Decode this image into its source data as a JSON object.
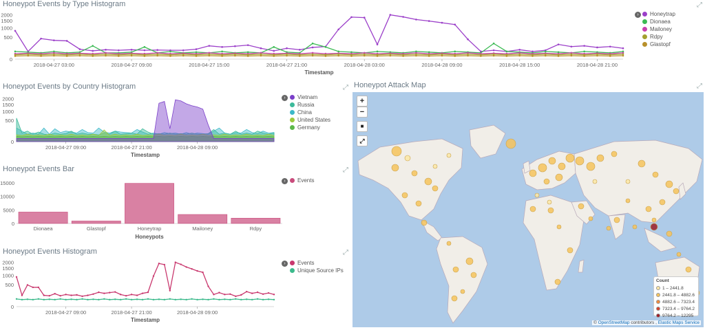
{
  "panels": {
    "type_hist": {
      "title": "Honeypot Events by Type Histogram",
      "xlabel": "Timestamp",
      "yticks": [
        "2000",
        "1500",
        "1000",
        "500",
        "0"
      ],
      "xticks": [
        "2018-04-27 03:00",
        "2018-04-27 09:00",
        "2018-04-27 15:00",
        "2018-04-27 21:00",
        "2018-04-28 03:00",
        "2018-04-28 09:00",
        "2018-04-28 15:00",
        "2018-04-28 21:00"
      ],
      "legend": [
        {
          "name": "Honeytrap",
          "color": "#9b3fc9"
        },
        {
          "name": "Dionaea",
          "color": "#3cba54"
        },
        {
          "name": "Mailoney",
          "color": "#c93fb0"
        },
        {
          "name": "Rdpy",
          "color": "#a3a02f"
        },
        {
          "name": "Glastopf",
          "color": "#b8902b"
        }
      ]
    },
    "country_hist": {
      "title": "Honeypot Events by Country Histogram",
      "xlabel": "Timestamp",
      "yticks": [
        "2000",
        "1500",
        "1000",
        "500",
        "0"
      ],
      "xticks": [
        "2018-04-27 09:00",
        "2018-04-27 21:00",
        "2018-04-28 09:00"
      ],
      "legend": [
        {
          "name": "Vietnam",
          "color": "#7a3fc9"
        },
        {
          "name": "Russia",
          "color": "#3cba9a"
        },
        {
          "name": "China",
          "color": "#3cb8c9"
        },
        {
          "name": "United States",
          "color": "#9bc93c"
        },
        {
          "name": "Germany",
          "color": "#5cb84a"
        }
      ]
    },
    "bar": {
      "title": "Honeypot Events Bar",
      "xlabel": "Honeypots",
      "yticks": [
        "15000",
        "10000",
        "5000",
        "0"
      ],
      "legend": [
        {
          "name": "Events",
          "color": "#c94c7c"
        }
      ]
    },
    "events_hist": {
      "title": "Honeypot Events Histogram",
      "xlabel": "Timestamp",
      "yticks": [
        "2000",
        "1500",
        "1000",
        "500",
        "0"
      ],
      "xticks": [
        "2018-04-27 09:00",
        "2018-04-27 21:00",
        "2018-04-28 09:00"
      ],
      "legend": [
        {
          "name": "Events",
          "color": "#c9386e"
        },
        {
          "name": "Unique Source IPs",
          "color": "#3cba8c"
        }
      ]
    },
    "map": {
      "title": "Honeypot Attack Map",
      "legend_title": "Count",
      "legend": [
        {
          "label": "1 – 2441.8",
          "color": "#fce7a6"
        },
        {
          "label": "2441.8 – 4882.6",
          "color": "#f6c35c"
        },
        {
          "label": "4882.6 – 7323.4",
          "color": "#f08a3c"
        },
        {
          "label": "7323.4 – 9764.2",
          "color": "#d6402b"
        },
        {
          "label": "9764.2 – 12295",
          "color": "#9b1c28"
        }
      ],
      "attribution_prefix": "©",
      "attribution_osm": "OpenStreetMap",
      "attribution_mid": "contributors ,",
      "attribution_ems": "Elastic Maps Service",
      "controls": {
        "zoom_in": "+",
        "zoom_out": "−",
        "draw": "■",
        "fit": "⤢"
      }
    }
  },
  "chart_data": [
    {
      "type": "line",
      "title": "Honeypot Events by Type Histogram",
      "xlabel": "Timestamp",
      "ylabel": "",
      "ylim": [
        0,
        2100
      ],
      "ysqrt": true,
      "x": [
        "2018-04-27 00:00",
        "2018-04-27 01:00",
        "2018-04-27 02:00",
        "2018-04-27 03:00",
        "2018-04-27 04:00",
        "2018-04-27 05:00",
        "2018-04-27 06:00",
        "2018-04-27 07:00",
        "2018-04-27 08:00",
        "2018-04-27 09:00",
        "2018-04-27 10:00",
        "2018-04-27 11:00",
        "2018-04-27 12:00",
        "2018-04-27 13:00",
        "2018-04-27 14:00",
        "2018-04-27 15:00",
        "2018-04-27 16:00",
        "2018-04-27 17:00",
        "2018-04-27 18:00",
        "2018-04-27 19:00",
        "2018-04-27 20:00",
        "2018-04-27 21:00",
        "2018-04-27 22:00",
        "2018-04-27 23:00",
        "2018-04-28 00:00",
        "2018-04-28 01:00",
        "2018-04-28 02:00",
        "2018-04-28 03:00",
        "2018-04-28 04:00",
        "2018-04-28 05:00",
        "2018-04-28 06:00",
        "2018-04-28 07:00",
        "2018-04-28 08:00",
        "2018-04-28 09:00",
        "2018-04-28 10:00",
        "2018-04-28 11:00",
        "2018-04-28 12:00",
        "2018-04-28 13:00",
        "2018-04-28 14:00",
        "2018-04-28 15:00",
        "2018-04-28 16:00",
        "2018-04-28 17:00",
        "2018-04-28 18:00",
        "2018-04-28 19:00",
        "2018-04-28 20:00",
        "2018-04-28 21:00",
        "2018-04-28 22:00",
        "2018-04-28 23:00"
      ],
      "series": [
        {
          "name": "Honeytrap",
          "values": [
            820,
            60,
            430,
            360,
            340,
            100,
            70,
            90,
            80,
            90,
            80,
            85,
            80,
            80,
            100,
            180,
            150,
            170,
            200,
            120,
            70,
            120,
            90,
            140,
            160,
            900,
            1800,
            1760,
            220,
            2000,
            1820,
            1600,
            1480,
            1350,
            1220,
            400,
            60,
            80,
            60,
            90,
            60,
            80,
            220,
            160,
            180,
            140,
            160,
            120
          ]
        },
        {
          "name": "Dionaea",
          "values": [
            60,
            50,
            40,
            60,
            40,
            50,
            180,
            40,
            40,
            50,
            150,
            40,
            60,
            40,
            50,
            40,
            60,
            40,
            50,
            40,
            150,
            50,
            40,
            250,
            150,
            60,
            50,
            40,
            60,
            50,
            40,
            60,
            50,
            40,
            60,
            50,
            40,
            250,
            60,
            50,
            40,
            60,
            50,
            40,
            60,
            50,
            40,
            60
          ]
        },
        {
          "name": "Mailoney",
          "values": [
            30,
            35,
            30,
            40,
            30,
            35,
            30,
            40,
            30,
            35,
            30,
            40,
            30,
            35,
            30,
            40,
            30,
            35,
            30,
            40,
            30,
            35,
            30,
            40,
            30,
            35,
            30,
            40,
            30,
            35,
            30,
            40,
            30,
            35,
            30,
            40,
            30,
            35,
            30,
            40,
            30,
            35,
            30,
            40,
            30,
            35,
            30,
            40
          ]
        },
        {
          "name": "Rdpy",
          "values": [
            20,
            25,
            20,
            25,
            20,
            25,
            20,
            25,
            20,
            25,
            20,
            25,
            20,
            25,
            20,
            25,
            20,
            25,
            20,
            25,
            20,
            25,
            20,
            25,
            20,
            25,
            20,
            25,
            20,
            25,
            20,
            25,
            20,
            25,
            20,
            25,
            20,
            25,
            20,
            25,
            20,
            25,
            20,
            25,
            20,
            25,
            20,
            25
          ]
        },
        {
          "name": "Glastopf",
          "values": [
            10,
            12,
            10,
            12,
            10,
            12,
            10,
            12,
            10,
            12,
            10,
            12,
            10,
            12,
            10,
            12,
            10,
            12,
            10,
            12,
            10,
            12,
            10,
            12,
            10,
            12,
            10,
            12,
            10,
            12,
            10,
            12,
            10,
            12,
            10,
            12,
            10,
            12,
            10,
            12,
            10,
            12,
            10,
            12,
            10,
            12,
            10,
            12
          ]
        }
      ]
    },
    {
      "type": "area",
      "title": "Honeypot Events by Country Histogram",
      "xlabel": "Timestamp",
      "ylabel": "",
      "ylim": [
        0,
        2100
      ],
      "ysqrt": true,
      "x_points": 48,
      "series": [
        {
          "name": "Vietnam",
          "values": [
            10,
            10,
            10,
            10,
            10,
            10,
            10,
            10,
            10,
            10,
            10,
            10,
            10,
            10,
            10,
            10,
            10,
            10,
            10,
            10,
            10,
            10,
            10,
            10,
            10,
            10,
            1600,
            1750,
            180,
            1900,
            1800,
            1550,
            1400,
            1300,
            1150,
            300,
            10,
            10,
            10,
            10,
            10,
            10,
            10,
            10,
            10,
            10,
            10,
            10
          ]
        },
        {
          "name": "Russia",
          "values": [
            600,
            80,
            120,
            60,
            100,
            60,
            50,
            80,
            60,
            70,
            120,
            60,
            80,
            60,
            60,
            50,
            80,
            60,
            120,
            60,
            70,
            80,
            60,
            180,
            100,
            60,
            70,
            60,
            80,
            60,
            70,
            60,
            80,
            60,
            60,
            70,
            160,
            60,
            80,
            60,
            120,
            60,
            80,
            60,
            120,
            80,
            60,
            80
          ]
        },
        {
          "name": "China",
          "values": [
            200,
            120,
            60,
            80,
            60,
            200,
            60,
            180,
            90,
            120,
            100,
            80,
            160,
            90,
            80,
            200,
            100,
            80,
            120,
            100,
            90,
            80,
            160,
            100,
            60,
            80,
            60,
            90,
            70,
            80,
            60,
            90,
            60,
            80,
            70,
            60,
            120,
            200,
            80,
            60,
            90,
            80,
            160,
            90,
            70,
            120,
            80,
            90
          ]
        },
        {
          "name": "United States",
          "values": [
            50,
            40,
            60,
            40,
            50,
            40,
            60,
            40,
            50,
            40,
            60,
            40,
            50,
            40,
            60,
            40,
            150,
            40,
            60,
            40,
            50,
            40,
            60,
            40,
            50,
            40,
            60,
            40,
            50,
            40,
            60,
            40,
            50,
            40,
            60,
            40,
            50,
            40,
            60,
            40,
            50,
            40,
            60,
            40,
            50,
            40,
            60,
            40
          ]
        },
        {
          "name": "Germany",
          "values": [
            30,
            25,
            30,
            25,
            30,
            25,
            30,
            25,
            30,
            25,
            30,
            25,
            30,
            25,
            30,
            25,
            30,
            25,
            30,
            25,
            30,
            25,
            30,
            25,
            30,
            25,
            30,
            25,
            30,
            25,
            30,
            25,
            30,
            25,
            30,
            25,
            30,
            25,
            30,
            25,
            30,
            25,
            30,
            25,
            30,
            25,
            30,
            25
          ]
        }
      ]
    },
    {
      "type": "bar",
      "title": "Honeypot Events Bar",
      "xlabel": "Honeypots",
      "ylabel": "",
      "ylim": [
        0,
        17000
      ],
      "categories": [
        "Dionaea",
        "Glastopf",
        "Honeytrap",
        "Mailoney",
        "Rdpy"
      ],
      "series": [
        {
          "name": "Events",
          "values": [
            4200,
            900,
            14800,
            3300,
            1950
          ]
        }
      ]
    },
    {
      "type": "line",
      "title": "Honeypot Events Histogram",
      "xlabel": "Timestamp",
      "ylabel": "",
      "ylim": [
        0,
        2100
      ],
      "ysqrt": true,
      "x_points": 48,
      "series": [
        {
          "name": "Events",
          "values": [
            900,
            130,
            480,
            380,
            380,
            130,
            120,
            170,
            120,
            150,
            130,
            140,
            110,
            130,
            160,
            210,
            180,
            200,
            220,
            150,
            120,
            150,
            130,
            180,
            210,
            950,
            1900,
            1800,
            260,
            2000,
            1820,
            1600,
            1450,
            1300,
            1200,
            420,
            150,
            200,
            150,
            160,
            110,
            140,
            230,
            180,
            210,
            160,
            190,
            150
          ]
        },
        {
          "name": "Unique Source IPs",
          "values": [
            60,
            50,
            55,
            50,
            60,
            50,
            55,
            50,
            60,
            50,
            55,
            50,
            60,
            50,
            55,
            50,
            60,
            50,
            55,
            50,
            60,
            50,
            55,
            50,
            60,
            50,
            55,
            50,
            60,
            50,
            55,
            50,
            60,
            50,
            55,
            50,
            60,
            50,
            55,
            50,
            60,
            50,
            55,
            50,
            60,
            50,
            55,
            50
          ]
        }
      ]
    }
  ]
}
